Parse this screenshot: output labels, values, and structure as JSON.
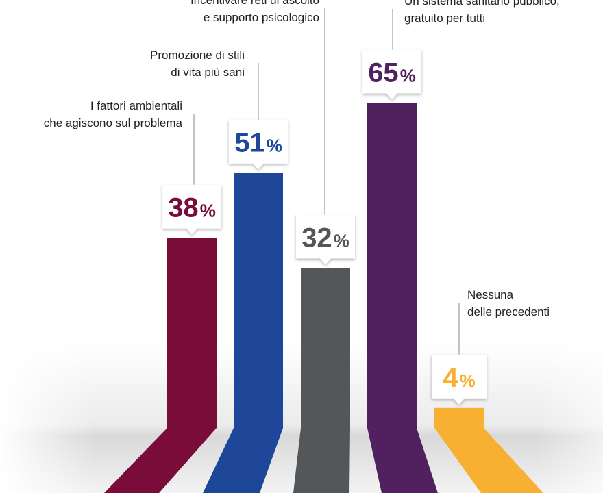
{
  "chart_data": {
    "type": "bar",
    "categories": [
      "I fattori ambientali\nche agiscono sul problema",
      "Promozione di stili\ndi vita più sani",
      "Incentivare reti di ascolto\ne supporto psicologico",
      "Un sistema sanitario pubblico,\ngratuito per tutti",
      "Nessuna\ndelle precedenti"
    ],
    "values": [
      38,
      51,
      32,
      65,
      4
    ],
    "value_labels": [
      "38",
      "51",
      "32",
      "65",
      "4"
    ],
    "unit": "%",
    "colors": [
      "#7a0c3a",
      "#1f4799",
      "#535759",
      "#51215f",
      "#f8b033"
    ],
    "ylim": [
      0,
      65
    ]
  }
}
